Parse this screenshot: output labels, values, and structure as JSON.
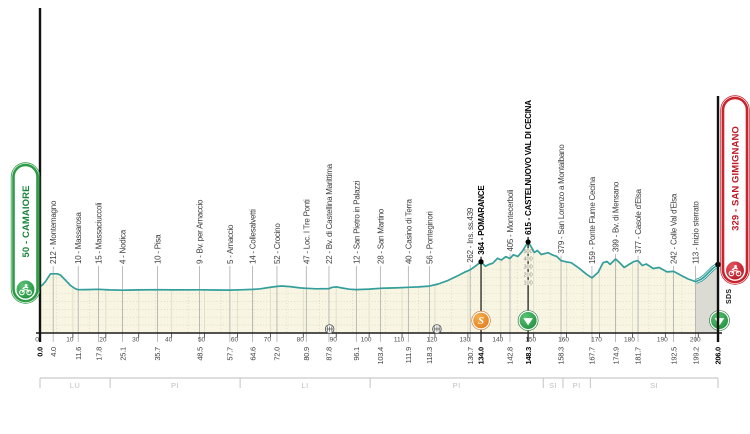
{
  "chart_data": {
    "type": "area",
    "x_unit": "km",
    "elevation_unit": "m",
    "x_range_km": [
      0,
      206
    ],
    "grid": true,
    "start": {
      "name": "50 - CAMAIORE",
      "km": 0,
      "km_label": "0.0",
      "elevation": 50,
      "theme": "green"
    },
    "finish": {
      "name": "329 - SAN GIMIGNANO",
      "km": 206,
      "km_label": "206.0",
      "elevation": 329,
      "theme": "red",
      "dot": true
    },
    "waypoints": [
      {
        "km": 4.0,
        "km_label": "4.0",
        "label": "212 - Montemagno",
        "bold": false
      },
      {
        "km": 11.6,
        "km_label": "11.6",
        "label": "10 - Massarosa",
        "bold": false
      },
      {
        "km": 17.8,
        "km_label": "17.8",
        "label": "15 - Massaciuccoli",
        "bold": false
      },
      {
        "km": 25.1,
        "km_label": "25.1",
        "label": "4 - Nodica",
        "bold": false
      },
      {
        "km": 35.7,
        "km_label": "35.7",
        "label": "10 - Pisa",
        "bold": false
      },
      {
        "km": 48.5,
        "km_label": "48.5",
        "label": "9 - Bv. per Arnaccio",
        "bold": false
      },
      {
        "km": 57.7,
        "km_label": "57.7",
        "label": "5 - Arnaccio",
        "bold": false
      },
      {
        "km": 64.6,
        "km_label": "64.6",
        "label": "14 - Collesalvetti",
        "bold": false
      },
      {
        "km": 72.0,
        "km_label": "72.0",
        "label": "52 - Crocino",
        "bold": false
      },
      {
        "km": 80.9,
        "km_label": "80.9",
        "label": "47 - Loc. I Tre Ponti",
        "bold": false
      },
      {
        "km": 87.8,
        "km_label": "87.8",
        "label": "22 - Bv. di Castellina Marittima",
        "bold": false
      },
      {
        "km": 96.1,
        "km_label": "96.1",
        "label": "12 - San Pietro in Palazzi",
        "bold": false
      },
      {
        "km": 103.4,
        "km_label": "103.4",
        "label": "28 - San Martino",
        "bold": false
      },
      {
        "km": 111.9,
        "km_label": "111.9",
        "label": "40 - Casino di Terra",
        "bold": false
      },
      {
        "km": 118.3,
        "km_label": "118.3",
        "label": "56 - Ponteginori",
        "bold": false
      },
      {
        "km": 130.7,
        "km_label": "130.7",
        "label": "262 - Ins. ss.439",
        "bold": false
      },
      {
        "km": 134.0,
        "km_label": "134.0",
        "label": "364 - POMARANCE",
        "bold": true,
        "dot": true
      },
      {
        "km": 142.8,
        "km_label": "142.8",
        "label": "405 - Montecerboli",
        "bold": false
      },
      {
        "km": 148.3,
        "km_label": "148.3",
        "label": "615 - CASTELNUOVO VAL DI CECINA",
        "bold": true,
        "dot": true,
        "scale_numbers": true
      },
      {
        "km": 158.3,
        "km_label": "158.3",
        "label": "379 - San Lorenzo a Montalbano",
        "bold": false
      },
      {
        "km": 167.7,
        "km_label": "167.7",
        "label": "159 - Ponte Fiume Cecina",
        "bold": false
      },
      {
        "km": 174.9,
        "km_label": "174.9",
        "label": "399 - Bv. di Mensano",
        "bold": false
      },
      {
        "km": 181.7,
        "km_label": "181.7",
        "label": "377 - Casole d'Elsa",
        "bold": false
      },
      {
        "km": 192.5,
        "km_label": "192.5",
        "label": "242 - Colle Val d'Elsa",
        "bold": false
      },
      {
        "km": 199.2,
        "km_label": "199.2",
        "label": "113 - Inizio sterrato",
        "bold": false
      }
    ],
    "x_ticks": [
      {
        "value": 0,
        "label": "0"
      },
      {
        "value": 10,
        "label": "10"
      },
      {
        "value": 20,
        "label": "20"
      },
      {
        "value": 30,
        "label": "30"
      },
      {
        "value": 40,
        "label": "40"
      },
      {
        "value": 50,
        "label": "50"
      },
      {
        "value": 60,
        "label": "60"
      },
      {
        "value": 70,
        "label": "70"
      },
      {
        "value": 80,
        "label": "80"
      },
      {
        "value": 90,
        "label": "90"
      },
      {
        "value": 100,
        "label": "100"
      },
      {
        "value": 110,
        "label": "110"
      },
      {
        "value": 120,
        "label": "120"
      },
      {
        "value": 130,
        "label": "130"
      },
      {
        "value": 140,
        "label": "140"
      },
      {
        "value": 150,
        "label": "150"
      },
      {
        "value": 160,
        "label": "160"
      },
      {
        "value": 170,
        "label": "170"
      },
      {
        "value": 180,
        "label": "180"
      },
      {
        "value": 190,
        "label": "190"
      },
      {
        "value": 200,
        "label": "200"
      }
    ],
    "provinces": [
      {
        "label": "LU",
        "from_km": 0,
        "to_km": 21.3
      },
      {
        "label": "PI",
        "from_km": 21.3,
        "to_km": 60.8
      },
      {
        "label": "LI",
        "from_km": 60.8,
        "to_km": 100.3
      },
      {
        "label": "PI",
        "from_km": 100.3,
        "to_km": 152.9
      },
      {
        "label": "SI",
        "from_km": 152.9,
        "to_km": 158.9
      },
      {
        "label": "PI",
        "from_km": 158.9,
        "to_km": 167.2
      },
      {
        "label": "SI",
        "from_km": 167.2,
        "to_km": 206
      }
    ],
    "symbols": {
      "sprint": {
        "km": 134.0,
        "glyph": "S"
      },
      "feed_zones": [
        {
          "km": 148.3
        },
        {
          "km": 206.0
        }
      ],
      "level_crossings": [
        {
          "km": 88.0
        },
        {
          "km": 120.6
        }
      ],
      "sds_label": "SDS"
    },
    "climb_scale": {
      "at_km": 148.3,
      "labels": [
        "500",
        "400",
        "300",
        "200",
        "100"
      ],
      "values": [
        500,
        400,
        300,
        200,
        100
      ]
    },
    "gravel_sector": {
      "from_km": 199.2,
      "to_km": 206.0
    },
    "profile_points": [
      [
        0,
        50
      ],
      [
        0.7,
        68
      ],
      [
        1.6,
        110
      ],
      [
        2.6,
        175
      ],
      [
        3.2,
        212
      ],
      [
        5.3,
        212
      ],
      [
        6.2,
        196
      ],
      [
        7.5,
        140
      ],
      [
        9.3,
        62
      ],
      [
        10.8,
        22
      ],
      [
        11.6,
        10
      ],
      [
        14,
        12
      ],
      [
        17.8,
        15
      ],
      [
        21,
        7
      ],
      [
        25.1,
        4
      ],
      [
        30,
        8
      ],
      [
        35.7,
        10
      ],
      [
        41,
        7
      ],
      [
        48.5,
        9
      ],
      [
        53,
        6
      ],
      [
        57.7,
        5
      ],
      [
        62,
        10
      ],
      [
        64.6,
        14
      ],
      [
        67,
        22
      ],
      [
        69.5,
        38
      ],
      [
        72,
        52
      ],
      [
        73.5,
        57
      ],
      [
        76,
        49
      ],
      [
        79,
        33
      ],
      [
        80.9,
        28
      ],
      [
        84,
        22
      ],
      [
        87.8,
        24
      ],
      [
        88.8,
        40
      ],
      [
        90.2,
        46
      ],
      [
        91.8,
        32
      ],
      [
        94,
        16
      ],
      [
        96.1,
        12
      ],
      [
        100,
        18
      ],
      [
        103.4,
        28
      ],
      [
        108,
        33
      ],
      [
        111.9,
        40
      ],
      [
        115,
        46
      ],
      [
        118.3,
        56
      ],
      [
        121,
        82
      ],
      [
        124,
        128
      ],
      [
        127,
        188
      ],
      [
        129,
        232
      ],
      [
        130.7,
        262
      ],
      [
        132.3,
        308
      ],
      [
        134,
        364
      ],
      [
        135.3,
        308
      ],
      [
        136.5,
        332
      ],
      [
        137.5,
        344
      ],
      [
        139,
        408
      ],
      [
        140.2,
        386
      ],
      [
        141.5,
        428
      ],
      [
        142.8,
        405
      ],
      [
        143.8,
        452
      ],
      [
        145.2,
        432
      ],
      [
        146.5,
        495
      ],
      [
        147.4,
        555
      ],
      [
        148.3,
        615
      ],
      [
        149.3,
        548
      ],
      [
        150.2,
        482
      ],
      [
        151.1,
        506
      ],
      [
        152.3,
        456
      ],
      [
        153.5,
        470
      ],
      [
        154.4,
        478
      ],
      [
        155.6,
        452
      ],
      [
        157,
        432
      ],
      [
        158.3,
        379
      ],
      [
        160,
        362
      ],
      [
        161.4,
        352
      ],
      [
        163.8,
        282
      ],
      [
        166,
        206
      ],
      [
        167.7,
        159
      ],
      [
        169.6,
        232
      ],
      [
        171.1,
        352
      ],
      [
        172.3,
        367
      ],
      [
        173.2,
        331
      ],
      [
        174.9,
        399
      ],
      [
        176,
        356
      ],
      [
        177.5,
        291
      ],
      [
        179,
        331
      ],
      [
        180.5,
        368
      ],
      [
        181.7,
        377
      ],
      [
        183,
        316
      ],
      [
        184.2,
        336
      ],
      [
        186.3,
        279
      ],
      [
        188.1,
        291
      ],
      [
        190.5,
        236
      ],
      [
        192.5,
        242
      ],
      [
        194.8,
        191
      ],
      [
        196.9,
        146
      ],
      [
        199.2,
        113
      ],
      [
        200.8,
        141
      ],
      [
        202,
        179
      ],
      [
        203.2,
        229
      ],
      [
        204.4,
        279
      ],
      [
        205.2,
        304
      ],
      [
        206,
        329
      ]
    ],
    "colors": {
      "line_teal": "#339E9B",
      "area_fill": "#F8F6E3",
      "grid_dot": "#C9C9B6",
      "grid_solid": "#DEDDCB",
      "gravel_fill": "#DBDBD3",
      "axis": "#1A1A1A",
      "waypoint_line": "#A0A0A0",
      "label_text": "#3F3F3F",
      "bold_text": "#000000",
      "province": "#BDBDBD",
      "green_border": "#2E9B46",
      "green_text": "#17863A",
      "red_border": "#C8242E",
      "red_text": "#C01626",
      "sprint_orange": "#EE8A22",
      "feed_green": "#2AA14C"
    }
  }
}
